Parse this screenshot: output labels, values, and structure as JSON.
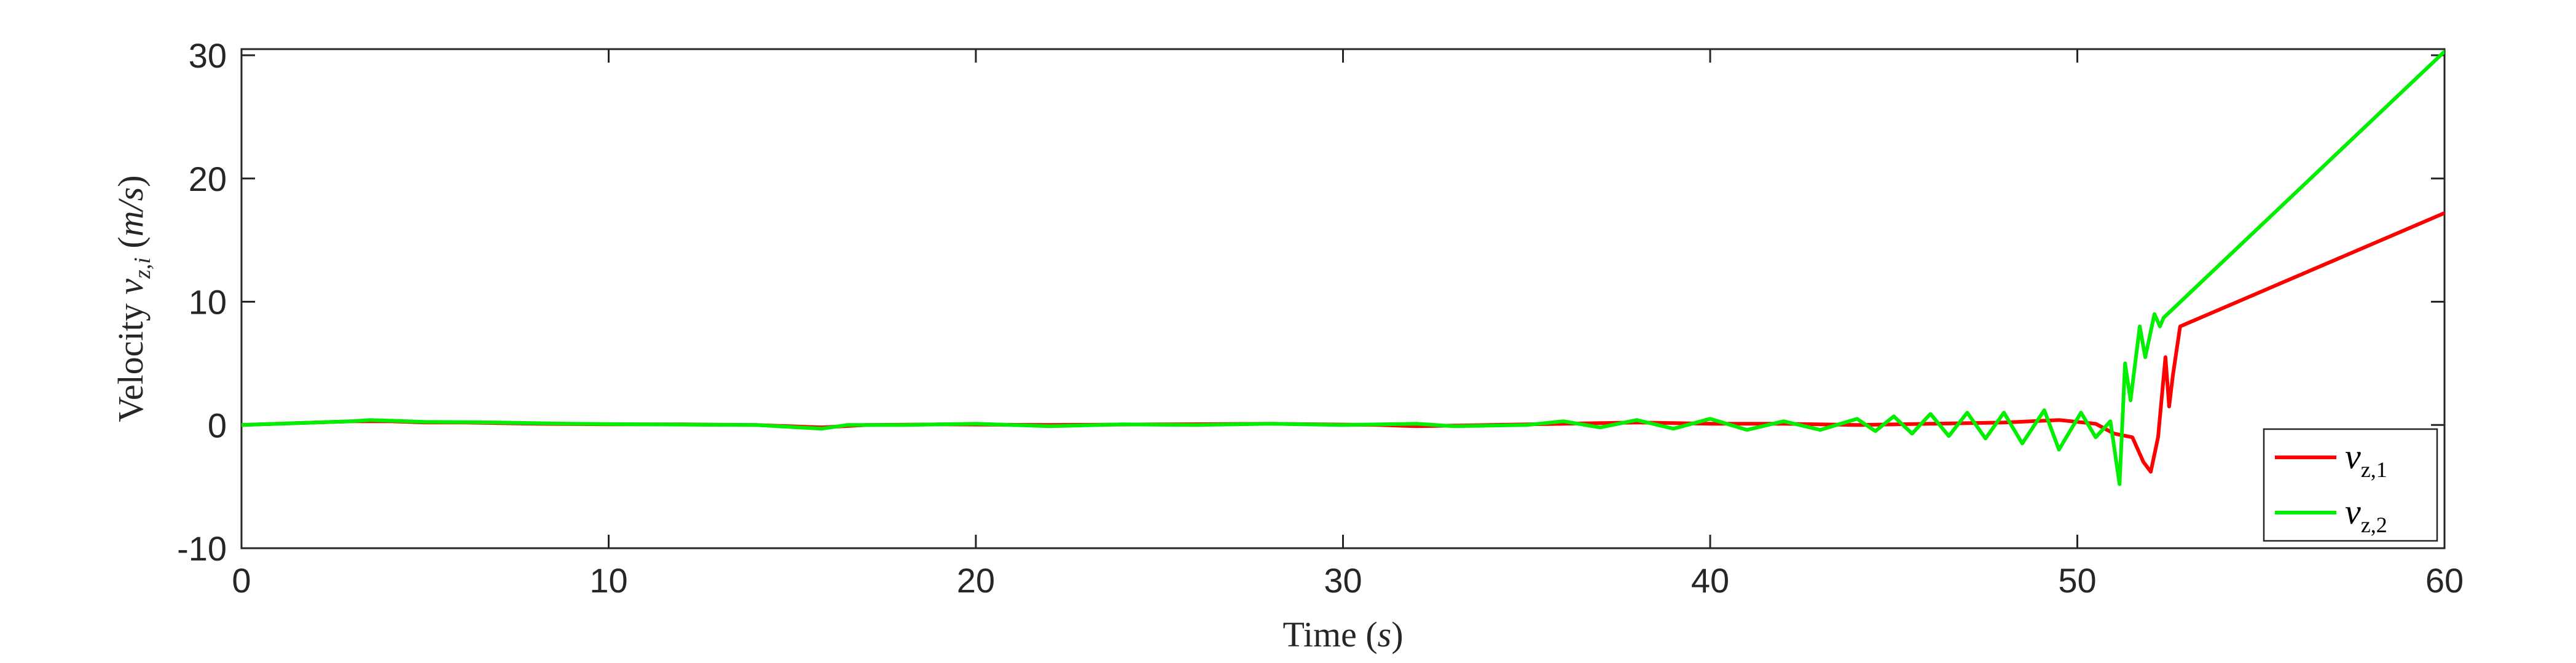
{
  "chart_data": {
    "type": "line",
    "xlabel": "Time (s)",
    "ylabel": "Velocity v_{z,i} (m/s)",
    "xlim": [
      0,
      60
    ],
    "ylim": [
      -10,
      30.5
    ],
    "x_ticks": [
      "0",
      "10",
      "20",
      "30",
      "40",
      "50",
      "60"
    ],
    "y_ticks": [
      "-10",
      "0",
      "10",
      "20",
      "30"
    ],
    "grid": false,
    "legend_position": "bottom-right",
    "colors": {
      "v_z1": "#ff0000",
      "v_z2": "#00ee00"
    },
    "series": [
      {
        "name": "v_{z,1}",
        "legend_main": "v",
        "legend_sub": "z,1",
        "color": "#ff0000",
        "points": [
          [
            0,
            0
          ],
          [
            1,
            0.1
          ],
          [
            2,
            0.2
          ],
          [
            3,
            0.3
          ],
          [
            4,
            0.3
          ],
          [
            5,
            0.2
          ],
          [
            6,
            0.2
          ],
          [
            8,
            0.1
          ],
          [
            10,
            0.05
          ],
          [
            12,
            0.05
          ],
          [
            14,
            0
          ],
          [
            15.8,
            -0.2
          ],
          [
            17,
            0
          ],
          [
            19,
            0.05
          ],
          [
            22,
            0
          ],
          [
            25,
            0.05
          ],
          [
            28,
            0.1
          ],
          [
            31,
            0
          ],
          [
            32,
            -0.1
          ],
          [
            34,
            0
          ],
          [
            36,
            0.1
          ],
          [
            38,
            0.2
          ],
          [
            40,
            0.1
          ],
          [
            42,
            0.1
          ],
          [
            44,
            0
          ],
          [
            46,
            0.1
          ],
          [
            48,
            0.2
          ],
          [
            49.5,
            0.4
          ],
          [
            50.5,
            0.1
          ],
          [
            51,
            -0.7
          ],
          [
            51.5,
            -1.0
          ],
          [
            51.8,
            -3.0
          ],
          [
            52.0,
            -3.8
          ],
          [
            52.2,
            -1.0
          ],
          [
            52.4,
            5.5
          ],
          [
            52.5,
            1.5
          ],
          [
            52.6,
            4.0
          ],
          [
            52.8,
            8.0
          ],
          [
            60,
            17.2
          ]
        ]
      },
      {
        "name": "v_{z,2}",
        "legend_main": "v",
        "legend_sub": "z,2",
        "color": "#00ee00",
        "points": [
          [
            0,
            0
          ],
          [
            1,
            0.1
          ],
          [
            2,
            0.2
          ],
          [
            3,
            0.3
          ],
          [
            3.5,
            0.4
          ],
          [
            5,
            0.25
          ],
          [
            7,
            0.2
          ],
          [
            9,
            0.1
          ],
          [
            11,
            0.05
          ],
          [
            14,
            0
          ],
          [
            15.8,
            -0.3
          ],
          [
            16.5,
            0
          ],
          [
            18,
            0
          ],
          [
            20,
            0.1
          ],
          [
            22,
            -0.1
          ],
          [
            24,
            0.05
          ],
          [
            26,
            0
          ],
          [
            28,
            0.1
          ],
          [
            30,
            0
          ],
          [
            32,
            0.1
          ],
          [
            33,
            -0.1
          ],
          [
            35,
            0
          ],
          [
            36,
            0.3
          ],
          [
            37,
            -0.2
          ],
          [
            38,
            0.4
          ],
          [
            39,
            -0.3
          ],
          [
            40,
            0.5
          ],
          [
            41,
            -0.4
          ],
          [
            42,
            0.3
          ],
          [
            43,
            -0.4
          ],
          [
            44,
            0.5
          ],
          [
            44.5,
            -0.5
          ],
          [
            45,
            0.7
          ],
          [
            45.5,
            -0.7
          ],
          [
            46,
            0.9
          ],
          [
            46.5,
            -0.9
          ],
          [
            47,
            1.0
          ],
          [
            47.5,
            -1.1
          ],
          [
            48,
            1.0
          ],
          [
            48.5,
            -1.5
          ],
          [
            49.1,
            1.2
          ],
          [
            49.5,
            -2.0
          ],
          [
            50.1,
            1.0
          ],
          [
            50.5,
            -1.0
          ],
          [
            50.9,
            0.3
          ],
          [
            51.15,
            -4.8
          ],
          [
            51.3,
            5.0
          ],
          [
            51.45,
            2.0
          ],
          [
            51.7,
            8.0
          ],
          [
            51.85,
            5.5
          ],
          [
            52.1,
            9.0
          ],
          [
            52.25,
            8.0
          ],
          [
            52.35,
            8.7
          ],
          [
            60,
            30.3
          ]
        ]
      }
    ]
  }
}
